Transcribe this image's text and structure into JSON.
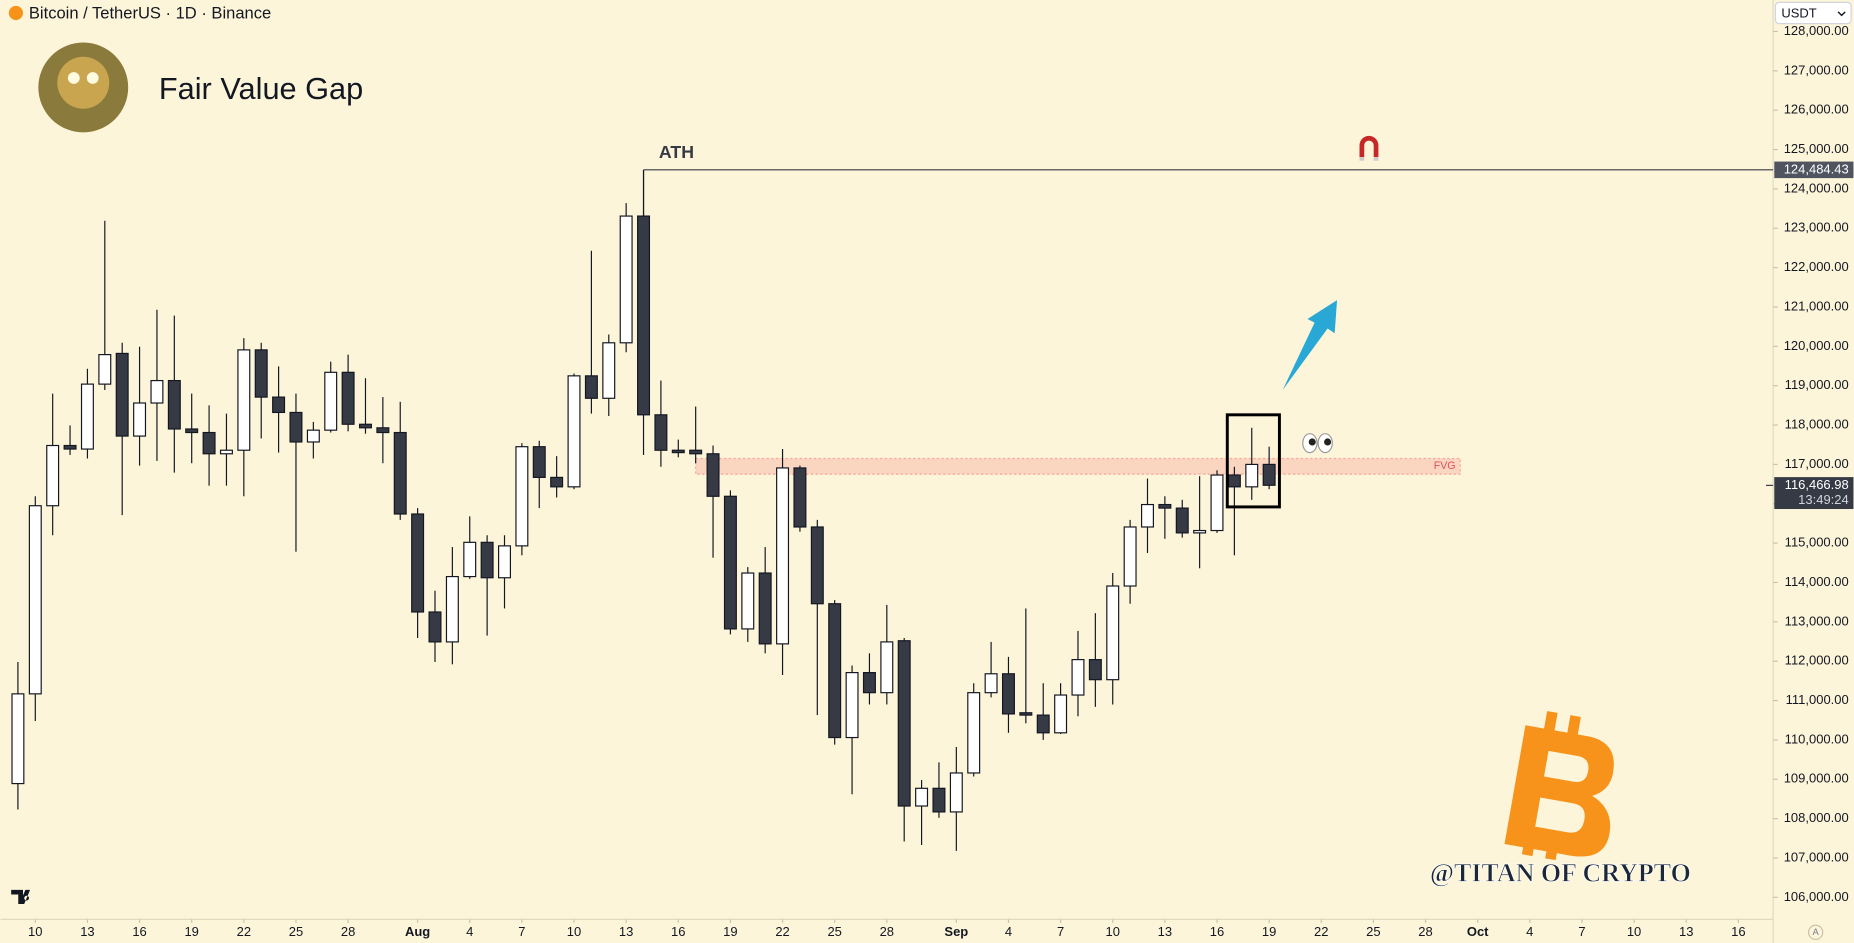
{
  "header": {
    "symbol": "Bitcoin / TetherUS · 1D · Binance",
    "currency": "USDT",
    "auto_label": "A"
  },
  "chart_data": {
    "type": "candlestick",
    "title": "Fair Value Gap",
    "watermark": "@TITAN OF CRYPTO",
    "up_color": "#ffffff",
    "down_color": "#363a45",
    "grid": false,
    "x": [
      "07-09",
      "07-10",
      "07-11",
      "07-12",
      "07-13",
      "07-14",
      "07-15",
      "07-16",
      "07-17",
      "07-18",
      "07-19",
      "07-20",
      "07-21",
      "07-22",
      "07-23",
      "07-24",
      "07-25",
      "07-26",
      "07-27",
      "07-28",
      "07-29",
      "07-30",
      "07-31",
      "08-01",
      "08-02",
      "08-03",
      "08-04",
      "08-05",
      "08-06",
      "08-07",
      "08-08",
      "08-09",
      "08-10",
      "08-11",
      "08-12",
      "08-13",
      "08-14",
      "08-15",
      "08-16",
      "08-17",
      "08-18",
      "08-19",
      "08-20",
      "08-21",
      "08-22",
      "08-23",
      "08-24",
      "08-25",
      "08-26",
      "08-27",
      "08-28",
      "08-29",
      "08-30",
      "08-31",
      "09-01",
      "09-02",
      "09-03",
      "09-04",
      "09-05",
      "09-06",
      "09-07",
      "09-08",
      "09-09",
      "09-10",
      "09-11",
      "09-12",
      "09-13",
      "09-14",
      "09-15",
      "09-16",
      "09-17",
      "09-18",
      "09-19"
    ],
    "open": [
      108890,
      111170,
      115950,
      117480,
      117390,
      119040,
      119820,
      117720,
      118560,
      119130,
      117900,
      117810,
      117270,
      117360,
      119910,
      118710,
      118320,
      117570,
      117870,
      119340,
      118020,
      117930,
      117810,
      115740,
      113250,
      112490,
      114150,
      115020,
      114120,
      114930,
      117450,
      116670,
      116430,
      119250,
      118680,
      120090,
      123310,
      118260,
      117360,
      117360,
      117270,
      116190,
      112820,
      114240,
      112440,
      116910,
      115410,
      113460,
      110060,
      111710,
      111200,
      112520,
      108320,
      108770,
      108170,
      109160,
      111200,
      111680,
      110690,
      110630,
      110180,
      111140,
      112040,
      111530,
      113910,
      115410,
      115980,
      115890,
      115260,
      115320,
      116730,
      116430,
      117000
    ],
    "high": [
      111980,
      116190,
      118800,
      117990,
      119430,
      123190,
      120090,
      119990,
      120930,
      120780,
      118800,
      118500,
      118290,
      120210,
      120090,
      119490,
      118800,
      118080,
      119610,
      119790,
      119190,
      118710,
      118590,
      115890,
      113790,
      114900,
      115680,
      115200,
      115200,
      117540,
      117600,
      117210,
      119310,
      122430,
      120300,
      123640,
      124480,
      119130,
      117630,
      118470,
      117480,
      116340,
      114390,
      114900,
      117390,
      116970,
      115590,
      113550,
      111890,
      112200,
      113430,
      112590,
      108980,
      109430,
      109820,
      111440,
      112490,
      112110,
      113340,
      111440,
      111440,
      112770,
      113220,
      114240,
      115590,
      116640,
      116190,
      116100,
      116700,
      116850,
      116940,
      117930,
      117450
    ],
    "low": [
      108230,
      110480,
      115200,
      117240,
      117150,
      118890,
      115710,
      116970,
      117090,
      116790,
      117030,
      116460,
      116460,
      116190,
      117660,
      117300,
      114780,
      117150,
      117810,
      117840,
      117780,
      117030,
      115590,
      112590,
      111980,
      111920,
      114090,
      112650,
      113340,
      114690,
      115890,
      116160,
      116370,
      118290,
      118230,
      119850,
      117240,
      116940,
      117180,
      117030,
      114630,
      112680,
      112490,
      112200,
      111650,
      115290,
      110630,
      109880,
      108620,
      110900,
      110900,
      107420,
      107330,
      108020,
      107180,
      109070,
      111080,
      110180,
      110420,
      110000,
      110150,
      110600,
      110840,
      110900,
      113460,
      114750,
      115110,
      115140,
      114360,
      115260,
      114690,
      116100,
      116370
    ],
    "close": [
      111170,
      115950,
      117480,
      117390,
      119040,
      119790,
      117720,
      118560,
      119130,
      117900,
      117810,
      117270,
      117360,
      119910,
      118710,
      118320,
      117570,
      117870,
      119340,
      118020,
      117930,
      117810,
      115740,
      113250,
      112490,
      114150,
      115020,
      114120,
      114930,
      117450,
      116670,
      116430,
      119250,
      118680,
      120090,
      123310,
      118260,
      117360,
      117300,
      117270,
      116190,
      112820,
      114240,
      112440,
      116910,
      115410,
      113460,
      110060,
      111710,
      111200,
      112490,
      108320,
      108770,
      108170,
      109160,
      111200,
      111680,
      110660,
      110630,
      110180,
      111140,
      112040,
      111530,
      113910,
      115410,
      115980,
      115890,
      115260,
      115320,
      116730,
      116430,
      117000,
      116470
    ],
    "xlim": [
      "07-08",
      "10-18"
    ],
    "xticks": [
      {
        "value": "07-10",
        "label": "10"
      },
      {
        "value": "07-13",
        "label": "13"
      },
      {
        "value": "07-16",
        "label": "16"
      },
      {
        "value": "07-19",
        "label": "19"
      },
      {
        "value": "07-22",
        "label": "22"
      },
      {
        "value": "07-25",
        "label": "25"
      },
      {
        "value": "07-28",
        "label": "28"
      },
      {
        "value": "08-01",
        "label": "Aug"
      },
      {
        "value": "08-04",
        "label": "4"
      },
      {
        "value": "08-07",
        "label": "7"
      },
      {
        "value": "08-10",
        "label": "10"
      },
      {
        "value": "08-13",
        "label": "13"
      },
      {
        "value": "08-16",
        "label": "16"
      },
      {
        "value": "08-19",
        "label": "19"
      },
      {
        "value": "08-22",
        "label": "22"
      },
      {
        "value": "08-25",
        "label": "25"
      },
      {
        "value": "08-28",
        "label": "28"
      },
      {
        "value": "09-01",
        "label": "Sep"
      },
      {
        "value": "09-04",
        "label": "4"
      },
      {
        "value": "09-07",
        "label": "7"
      },
      {
        "value": "09-10",
        "label": "10"
      },
      {
        "value": "09-13",
        "label": "13"
      },
      {
        "value": "09-16",
        "label": "16"
      },
      {
        "value": "09-19",
        "label": "19"
      },
      {
        "value": "09-22",
        "label": "22"
      },
      {
        "value": "09-25",
        "label": "25"
      },
      {
        "value": "09-28",
        "label": "28"
      },
      {
        "value": "10-01",
        "label": "Oct"
      },
      {
        "value": "10-04",
        "label": "4"
      },
      {
        "value": "10-07",
        "label": "7"
      },
      {
        "value": "10-10",
        "label": "10"
      },
      {
        "value": "10-13",
        "label": "13"
      },
      {
        "value": "10-16",
        "label": "16"
      }
    ],
    "ylim": [
      105440,
      128800
    ],
    "yticks": [
      {
        "value": 106000,
        "label": "106,000.00"
      },
      {
        "value": 107000,
        "label": "107,000.00"
      },
      {
        "value": 108000,
        "label": "108,000.00"
      },
      {
        "value": 109000,
        "label": "109,000.00"
      },
      {
        "value": 110000,
        "label": "110,000.00"
      },
      {
        "value": 111000,
        "label": "111,000.00"
      },
      {
        "value": 112000,
        "label": "112,000.00"
      },
      {
        "value": 113000,
        "label": "113,000.00"
      },
      {
        "value": 114000,
        "label": "114,000.00"
      },
      {
        "value": 115000,
        "label": "115,000.00"
      },
      {
        "value": 116000,
        "label": "116,000.00"
      },
      {
        "value": 117000,
        "label": "117,000.00"
      },
      {
        "value": 118000,
        "label": "118,000.00"
      },
      {
        "value": 119000,
        "label": "119,000.00"
      },
      {
        "value": 120000,
        "label": "120,000.00"
      },
      {
        "value": 121000,
        "label": "121,000.00"
      },
      {
        "value": 122000,
        "label": "122,000.00"
      },
      {
        "value": 123000,
        "label": "123,000.00"
      },
      {
        "value": 124000,
        "label": "124,000.00"
      },
      {
        "value": 125000,
        "label": "125,000.00"
      },
      {
        "value": 126000,
        "label": "126,000.00"
      },
      {
        "value": 127000,
        "label": "127,000.00"
      },
      {
        "value": 128000,
        "label": "128,000.00"
      }
    ],
    "ath": {
      "text": "ATH",
      "value": 124484.43,
      "label": "124,484.43",
      "from": "08-14"
    },
    "fvg": {
      "text": "FVG",
      "low": 116750,
      "high": 117150,
      "from": "08-17",
      "to": "09-30"
    },
    "highlight": {
      "from": "09-17",
      "to": "09-20",
      "low": 115920,
      "high": 118260
    },
    "last_price": {
      "value": 116466.98,
      "label": "116,466.98",
      "countdown": "13:49:24"
    }
  }
}
